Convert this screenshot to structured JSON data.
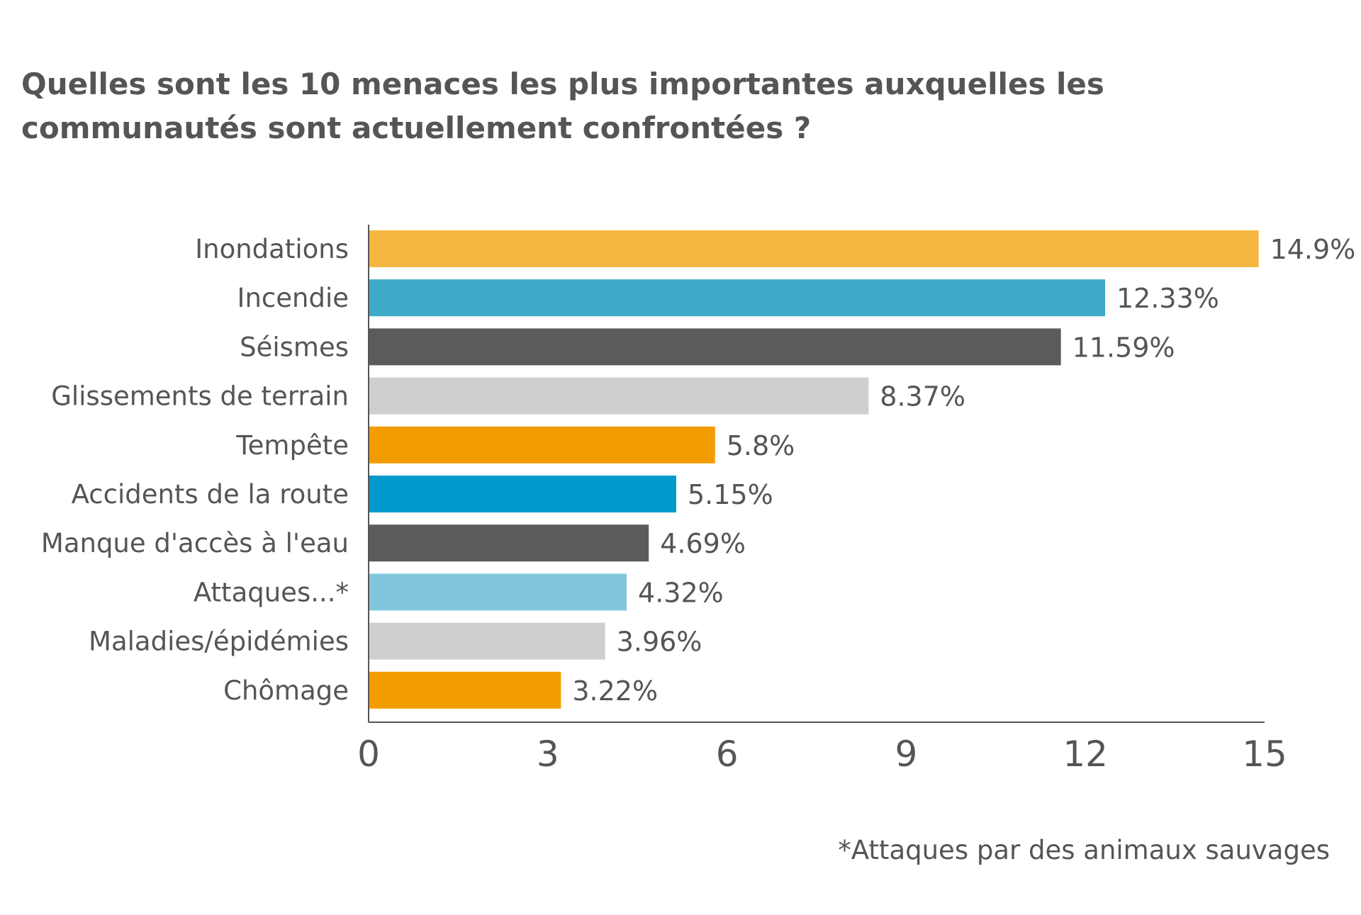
{
  "chart_data": {
    "type": "bar",
    "orientation": "horizontal",
    "title_lines": [
      "Quelles sont les 10 menaces les plus importantes auxquelles les",
      "communautés sont actuellement confrontées ?"
    ],
    "categories": [
      "Inondations",
      "Incendie",
      "Séismes",
      "Glissements de terrain",
      "Tempête",
      "Accidents de la route",
      "Manque d'accès à l'eau",
      "Attaques...*",
      "Maladies/épidémies",
      "Chômage"
    ],
    "values": [
      14.9,
      12.33,
      11.59,
      8.37,
      5.8,
      5.15,
      4.69,
      4.32,
      3.96,
      3.22
    ],
    "value_labels": [
      "14.9%",
      "12.33%",
      "11.59%",
      "8.37%",
      "5.8%",
      "5.15%",
      "4.69%",
      "4.32%",
      "3.96%",
      "3.22%"
    ],
    "colors": [
      "#F6B642",
      "#3FAAC8",
      "#5B5B5B",
      "#CFCFCF",
      "#F39C00",
      "#0099CC",
      "#5B5B5B",
      "#80C7DC",
      "#CFCFCF",
      "#F39C00"
    ],
    "xlim": [
      0,
      15
    ],
    "xticks": [
      0,
      3,
      6,
      9,
      12,
      15
    ],
    "xtick_labels": [
      "0",
      "3",
      "6",
      "9",
      "12",
      "15"
    ],
    "grid": false,
    "legend": "none",
    "footnote": "*Attaques par des animaux sauvages"
  }
}
